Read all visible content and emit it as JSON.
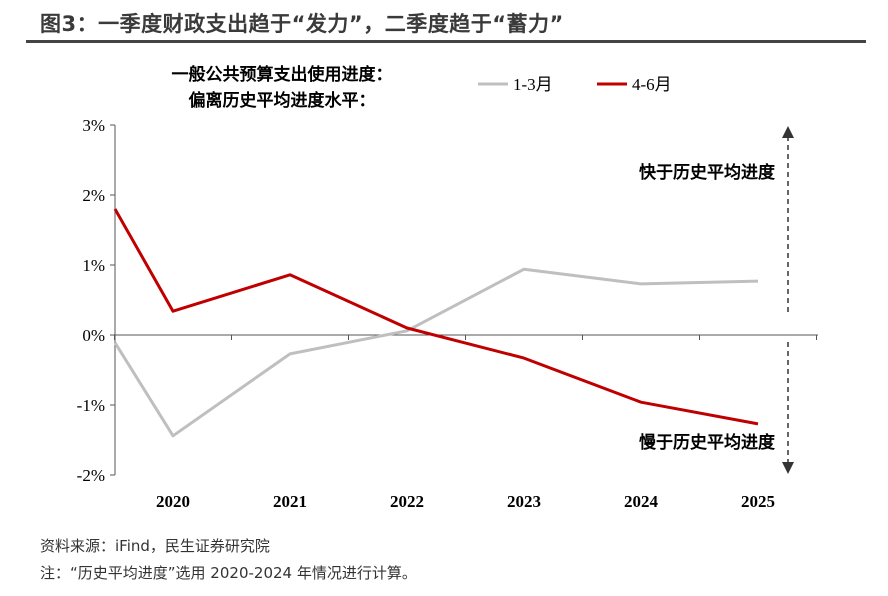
{
  "header": {
    "title": "图3：一季度财政支出趋于“发力”，二季度趋于“蓄力”"
  },
  "footer": {
    "source": "资料来源：iFind，民生证券研究院",
    "note": "注：“历史平均进度”选用 2020-2024 年情况进行计算。"
  },
  "chart_data": {
    "type": "line",
    "title_lines": [
      "一般公共预算支出使用进度：",
      "偏离历史平均进度水平："
    ],
    "categories": [
      "2020",
      "2021",
      "2022",
      "2023",
      "2024",
      "2025"
    ],
    "y_ticks": [
      "3%",
      "2%",
      "1%",
      "0%",
      "-1%",
      "-2%"
    ],
    "ylim": [
      -2,
      3
    ],
    "y_unit": "%",
    "grid": false,
    "legend_position": "top-right",
    "series": [
      {
        "name": "1-3月",
        "color": "#bfbfbf",
        "left_edge_value": -0.11,
        "values": [
          -1.44,
          -0.27,
          0.06,
          0.94,
          0.73,
          0.77
        ]
      },
      {
        "name": "4-6月",
        "color": "#c00000",
        "left_edge_value": 1.8,
        "values": [
          0.34,
          0.86,
          0.1,
          -0.33,
          -0.96,
          -1.27
        ]
      }
    ],
    "annotations": {
      "up": "快于历史平均进度",
      "down": "慢于历史平均进度"
    }
  }
}
